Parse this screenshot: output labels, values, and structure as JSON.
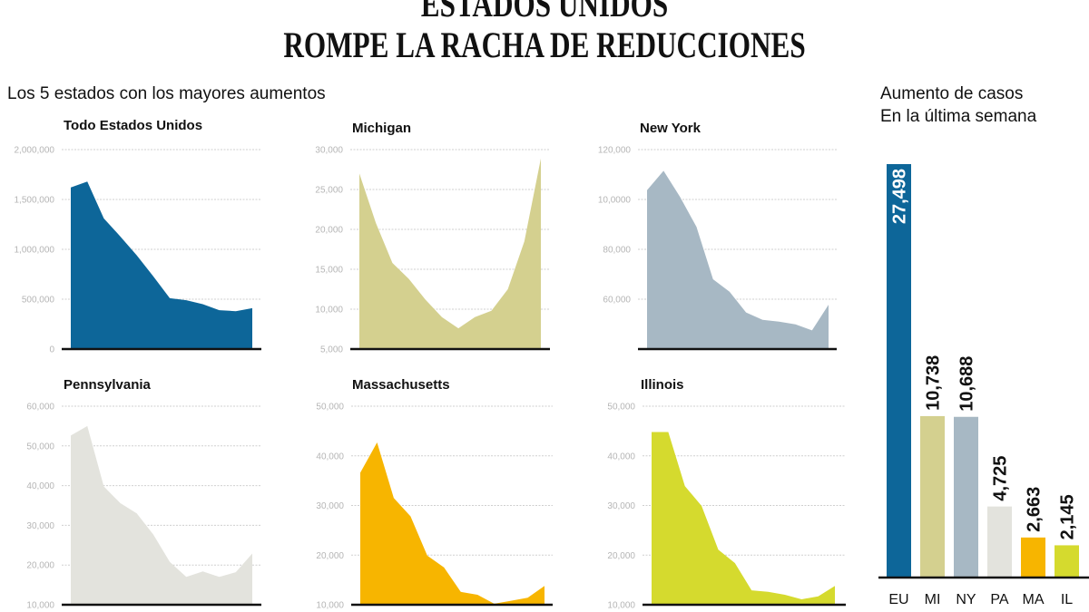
{
  "title": {
    "line1": "ESTADOS UNIDOS",
    "line2": "ROMPE LA RACHA DE REDUCCIONES"
  },
  "left_section_label": "Los 5 estados con los mayores aumentos",
  "right_section_label": {
    "line1": "Aumento de casos",
    "line2": "En la última semana"
  },
  "chart_data": [
    {
      "type": "area",
      "title": "Todo Estados Unidos",
      "color": "#0d6699",
      "ylim": [
        0,
        2000000
      ],
      "yticks": [
        0,
        500000,
        1000000,
        1500000,
        2000000
      ],
      "ytick_labels": [
        "0",
        "500,000",
        "1,000,000",
        "1,500,000",
        "2,000,000"
      ],
      "values": [
        1620000,
        1680000,
        1310000,
        1130000,
        940000,
        730000,
        510000,
        490000,
        450000,
        390000,
        380000,
        410000
      ]
    },
    {
      "type": "area",
      "title": "Michigan",
      "color": "#d4d08f",
      "ylim": [
        5000,
        30000
      ],
      "yticks": [
        5000,
        10000,
        15000,
        20000,
        25000,
        30000
      ],
      "ytick_labels": [
        "5,000",
        "10,000",
        "15,000",
        "20,000",
        "25,000",
        "30,000"
      ],
      "values": [
        27000,
        20800,
        15800,
        13800,
        11200,
        9000,
        7600,
        9000,
        9800,
        12500,
        18500,
        28900
      ]
    },
    {
      "type": "area",
      "title": "New York",
      "color": "#a7b8c4",
      "ylim": [
        40000,
        120000
      ],
      "yticks": [
        60000,
        80000,
        100000,
        120000
      ],
      "ytick_labels": [
        "60,000",
        "80,000",
        "10,0000",
        "120,000"
      ],
      "values": [
        103700,
        111500,
        101000,
        89000,
        68000,
        63000,
        54700,
        51700,
        51000,
        49900,
        47500,
        57800
      ]
    },
    {
      "type": "area",
      "title": "Pennsylvania",
      "color": "#e3e3dd",
      "ylim": [
        10000,
        60000
      ],
      "yticks": [
        10000,
        20000,
        30000,
        40000,
        50000,
        60000
      ],
      "ytick_labels": [
        "10,000",
        "20,000",
        "30,000",
        "40,000",
        "50,000",
        "60,000"
      ],
      "values": [
        52600,
        55000,
        39800,
        35600,
        33000,
        27700,
        20800,
        17000,
        18400,
        17000,
        18200,
        22900
      ]
    },
    {
      "type": "area",
      "title": "Massachusetts",
      "color": "#f7b500",
      "ylim": [
        10000,
        50000
      ],
      "yticks": [
        10000,
        20000,
        30000,
        40000,
        50000
      ],
      "ytick_labels": [
        "10,000",
        "20,000",
        "30,000",
        "40,000",
        "50,000"
      ],
      "values": [
        36600,
        42700,
        31500,
        27800,
        19900,
        17500,
        12600,
        12000,
        10200,
        10800,
        11400,
        13800
      ]
    },
    {
      "type": "area",
      "title": "Illinois",
      "color": "#d5da2e",
      "ylim": [
        10000,
        50000
      ],
      "yticks": [
        10000,
        20000,
        30000,
        40000,
        50000
      ],
      "ytick_labels": [
        "10,000",
        "20,000",
        "30,000",
        "40,000",
        "50,000"
      ],
      "values": [
        44800,
        44800,
        33900,
        29900,
        21100,
        18400,
        12900,
        12600,
        12000,
        11100,
        11700,
        13800
      ]
    },
    {
      "type": "bar",
      "title": "Aumento de casos En la última semana",
      "categories": [
        "EU",
        "MI",
        "NY",
        "PA",
        "MA",
        "IL"
      ],
      "values": [
        27498,
        10738,
        10688,
        4725,
        2663,
        2145
      ],
      "value_labels": [
        "27,498",
        "10,738",
        "10,688",
        "4,725",
        "2,663",
        "2,145"
      ],
      "colors": [
        "#0d6699",
        "#d4d08f",
        "#a7b8c4",
        "#e3e3dd",
        "#f7b500",
        "#d5da2e"
      ]
    }
  ]
}
